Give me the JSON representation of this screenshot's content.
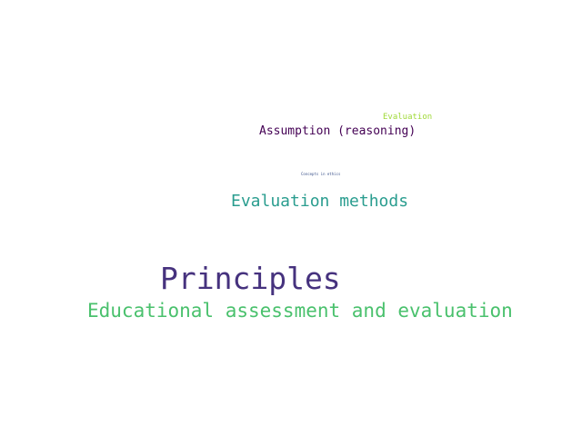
{
  "words": [
    {
      "key": "evaluation",
      "text": "Evaluation",
      "color": "#a0da39"
    },
    {
      "key": "assumption",
      "text": "Assumption (reasoning)",
      "color": "#440154"
    },
    {
      "key": "concepts",
      "text": "Concepts in ethics",
      "color": "#3b528b"
    },
    {
      "key": "evaluation_methods",
      "text": "Evaluation methods",
      "color": "#2a9d8f"
    },
    {
      "key": "principles",
      "text": "Principles",
      "color": "#46327e"
    },
    {
      "key": "educational",
      "text": "Educational assessment and evaluation",
      "color": "#4ac16d"
    }
  ]
}
